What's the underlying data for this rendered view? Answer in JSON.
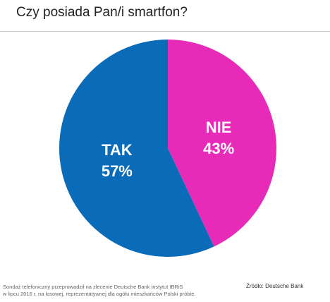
{
  "title": "Czy posiada Pan/i smartfon?",
  "chart_data": {
    "type": "pie",
    "slices": [
      {
        "label": "NIE",
        "value": 43,
        "value_label": "43%",
        "color": "#e82ab8"
      },
      {
        "label": "TAK",
        "value": 57,
        "value_label": "57%",
        "color": "#0a6cb8"
      }
    ]
  },
  "footnote": {
    "line1": "Sondaż telefoniczny przeprowadził na zlecenie Deutsche Bank instytut IBRiS",
    "line2": "w lipcu 2016 r. na losowej, reprezentatywnej dla ogółu mieszkańców Polski próbie."
  },
  "source": "Źródło: Deutsche Bank"
}
